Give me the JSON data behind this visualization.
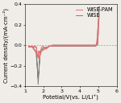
{
  "title": "",
  "xlabel": "Potetial/V(vs. Li/Li⁺)",
  "ylabel": "Current density/(mA·cm⁻²)",
  "xlim": [
    1,
    6
  ],
  "ylim": [
    -0.4,
    0.4
  ],
  "xticks": [
    1,
    2,
    3,
    4,
    5,
    6
  ],
  "yticks": [
    -0.4,
    -0.2,
    0.0,
    0.2,
    0.4
  ],
  "legend": [
    "WiSE-PAM",
    "WiSE"
  ],
  "wise_pam_color": "#e87070",
  "wise_color": "#808080",
  "background_color": "#f0ede8",
  "dashed_line_y": 0.0,
  "fontsize_axis": 5.0,
  "fontsize_tick": 4.5,
  "fontsize_legend": 4.8
}
